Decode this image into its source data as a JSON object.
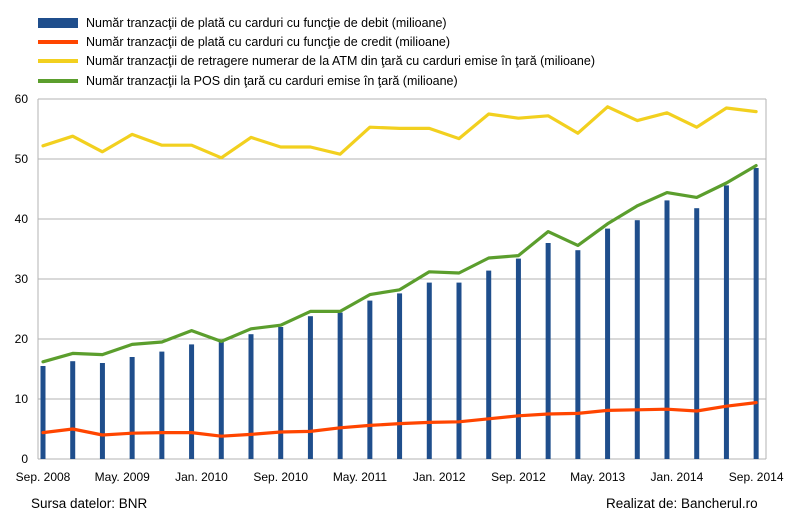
{
  "chart_data": {
    "type": "bar",
    "x_tick_labels": [
      "Sep. 2008",
      "May. 2009",
      "Jan. 2010",
      "Sep. 2010",
      "May. 2011",
      "Jan. 2012",
      "Sep. 2012",
      "May. 2013",
      "Jan. 2014",
      "Sep. 2014"
    ],
    "y_ticks": [
      0,
      10,
      20,
      30,
      40,
      50,
      60
    ],
    "ylim": [
      0,
      60
    ],
    "grid": "horizontal",
    "legend_position": "top",
    "n_periods": 25,
    "series": [
      {
        "name": "Număr tranzacţii de plată cu carduri cu funcţie de debit (milioane)",
        "type": "bar",
        "color": "#1F4E8C",
        "values": [
          15.5,
          16.3,
          16.0,
          17.0,
          17.9,
          19.1,
          19.6,
          20.8,
          22.0,
          23.8,
          24.4,
          26.4,
          27.6,
          29.4,
          29.4,
          31.4,
          33.4,
          36.0,
          34.8,
          38.4,
          39.8,
          43.1,
          41.8,
          45.6,
          48.5
        ]
      },
      {
        "name": "Număr tranzacţii de plată cu carduri cu funcţie de credit (milioane)",
        "type": "line",
        "color": "#FF4500",
        "values": [
          4.4,
          5.0,
          4.0,
          4.3,
          4.4,
          4.4,
          3.8,
          4.1,
          4.5,
          4.6,
          5.2,
          5.6,
          5.9,
          6.1,
          6.2,
          6.7,
          7.2,
          7.5,
          7.6,
          8.1,
          8.2,
          8.3,
          8.0,
          8.8,
          9.4
        ]
      },
      {
        "name": "Număr tranzacţii de retragere numerar de la ATM din ţară cu carduri emise în ţară (milioane)",
        "type": "line",
        "color": "#F2D01F",
        "values": [
          52.2,
          53.8,
          51.2,
          54.1,
          52.3,
          52.3,
          50.2,
          53.6,
          52.0,
          52.0,
          50.8,
          55.3,
          55.1,
          55.1,
          53.4,
          57.5,
          56.8,
          57.2,
          54.3,
          58.7,
          56.4,
          57.7,
          55.3,
          58.5,
          57.9
        ]
      },
      {
        "name": "Număr tranzacţii la POS din ţară cu carduri emise în ţară (milioane)",
        "type": "line",
        "color": "#5B9E2D",
        "values": [
          16.2,
          17.6,
          17.4,
          19.1,
          19.5,
          21.4,
          19.6,
          21.7,
          22.3,
          24.6,
          24.6,
          27.4,
          28.2,
          31.2,
          31.0,
          33.5,
          33.9,
          37.9,
          35.6,
          39.2,
          42.2,
          44.4,
          43.6,
          46.0,
          48.9
        ]
      }
    ]
  },
  "footer": {
    "source": "Sursa datelor: BNR",
    "credit": "Realizat de: Bancherul.ro"
  }
}
